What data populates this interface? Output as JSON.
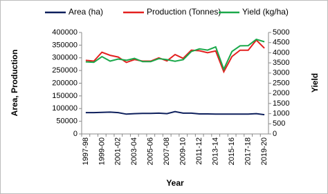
{
  "chart_data": {
    "type": "line",
    "y_label": "Area, Production",
    "y2_label": "Yield",
    "x_label": "Year",
    "categories": [
      "1997-98",
      null,
      "1999-00",
      null,
      "2001-02",
      null,
      "2003-04",
      null,
      "2005-06",
      null,
      "2007-08",
      null,
      "2009-10",
      null,
      "2011-12",
      null,
      "2013-14",
      null,
      "2015-16",
      null,
      "2017-18",
      null,
      "2019-20"
    ],
    "series": [
      {
        "name": "Area (ha)",
        "color": "#0d1f5c",
        "values": [
          84000,
          84000,
          85000,
          86000,
          84000,
          78000,
          80000,
          81000,
          81000,
          82000,
          80000,
          88000,
          82000,
          82000,
          79000,
          79000,
          78000,
          78000,
          78000,
          78000,
          78000,
          80000,
          76000
        ]
      },
      {
        "name": "Production (Tonnes)",
        "color": "#e3201f",
        "values": [
          290000,
          287000,
          322000,
          310000,
          303000,
          282000,
          293000,
          287000,
          287000,
          300000,
          288000,
          313000,
          298000,
          330000,
          328000,
          320000,
          327000,
          245000,
          305000,
          330000,
          330000,
          370000,
          338000
        ]
      },
      {
        "name": "Yield (kg/ha)",
        "color": "#1aa84a",
        "axis": "y2",
        "values": [
          3550,
          3530,
          3810,
          3590,
          3690,
          3630,
          3720,
          3560,
          3560,
          3710,
          3660,
          3580,
          3660,
          4060,
          4190,
          4130,
          4290,
          3190,
          4060,
          4340,
          4350,
          4660,
          4540
        ]
      }
    ],
    "ylim": [
      0,
      400000
    ],
    "yticks": [
      0,
      50000,
      100000,
      150000,
      200000,
      250000,
      300000,
      350000,
      400000
    ],
    "y2lim": [
      0,
      5000
    ],
    "y2ticks": [
      0,
      500,
      1000,
      1500,
      2000,
      2500,
      3000,
      3500,
      4000,
      4500,
      5000
    ],
    "legend": "top"
  }
}
